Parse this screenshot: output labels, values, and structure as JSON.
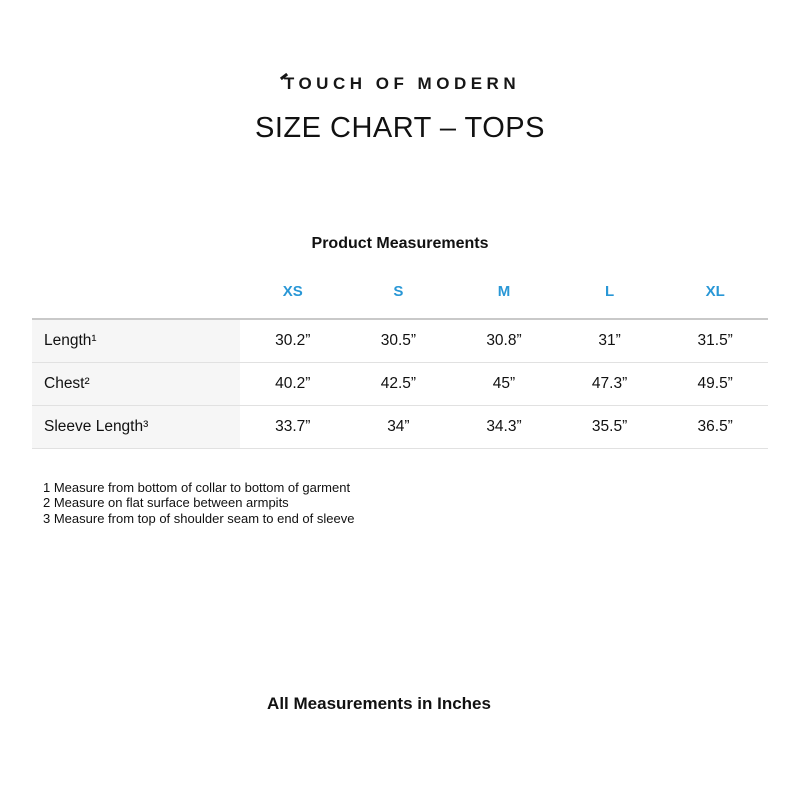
{
  "brand": {
    "logo_text": "TOUCH OF MODERN"
  },
  "page": {
    "title": "SIZE CHART – TOPS",
    "footer_note": "All Measurements in Inches"
  },
  "measurements_table": {
    "caption": "Product Measurements",
    "size_columns": [
      "XS",
      "S",
      "M",
      "L",
      "XL"
    ],
    "rows": [
      {
        "label": "Length¹",
        "values": [
          "30.2”",
          "30.5”",
          "30.8”",
          "31”",
          "31.5”"
        ]
      },
      {
        "label": "Chest²",
        "values": [
          "40.2”",
          "42.5”",
          "45”",
          "47.3”",
          "49.5”"
        ]
      },
      {
        "label": "Sleeve Length³",
        "values": [
          "33.7”",
          "34”",
          "34.3”",
          "35.5”",
          "36.5”"
        ]
      }
    ]
  },
  "footnotes": [
    "1 Measure from bottom of collar to bottom of garment",
    "2 Measure on flat surface between armpits",
    "3 Measure from top of shoulder seam to end of sleeve"
  ],
  "colors": {
    "accent_blue": "#2997d6",
    "text_black": "#111111",
    "label_column_bg": "#f6f6f6",
    "table_top_border": "#c9c9c9",
    "row_separator": "#e1e1e1"
  },
  "chart_data": {
    "type": "table",
    "title": "SIZE CHART – TOPS",
    "subtitle": "Product Measurements",
    "columns": [
      "",
      "XS",
      "S",
      "M",
      "L",
      "XL"
    ],
    "rows": [
      [
        "Length¹",
        "30.2”",
        "30.5”",
        "30.8”",
        "31”",
        "31.5”"
      ],
      [
        "Chest²",
        "40.2”",
        "42.5”",
        "45”",
        "47.3”",
        "49.5”"
      ],
      [
        "Sleeve Length³",
        "33.7”",
        "34”",
        "34.3”",
        "35.5”",
        "36.5”"
      ]
    ],
    "units": "inches"
  }
}
